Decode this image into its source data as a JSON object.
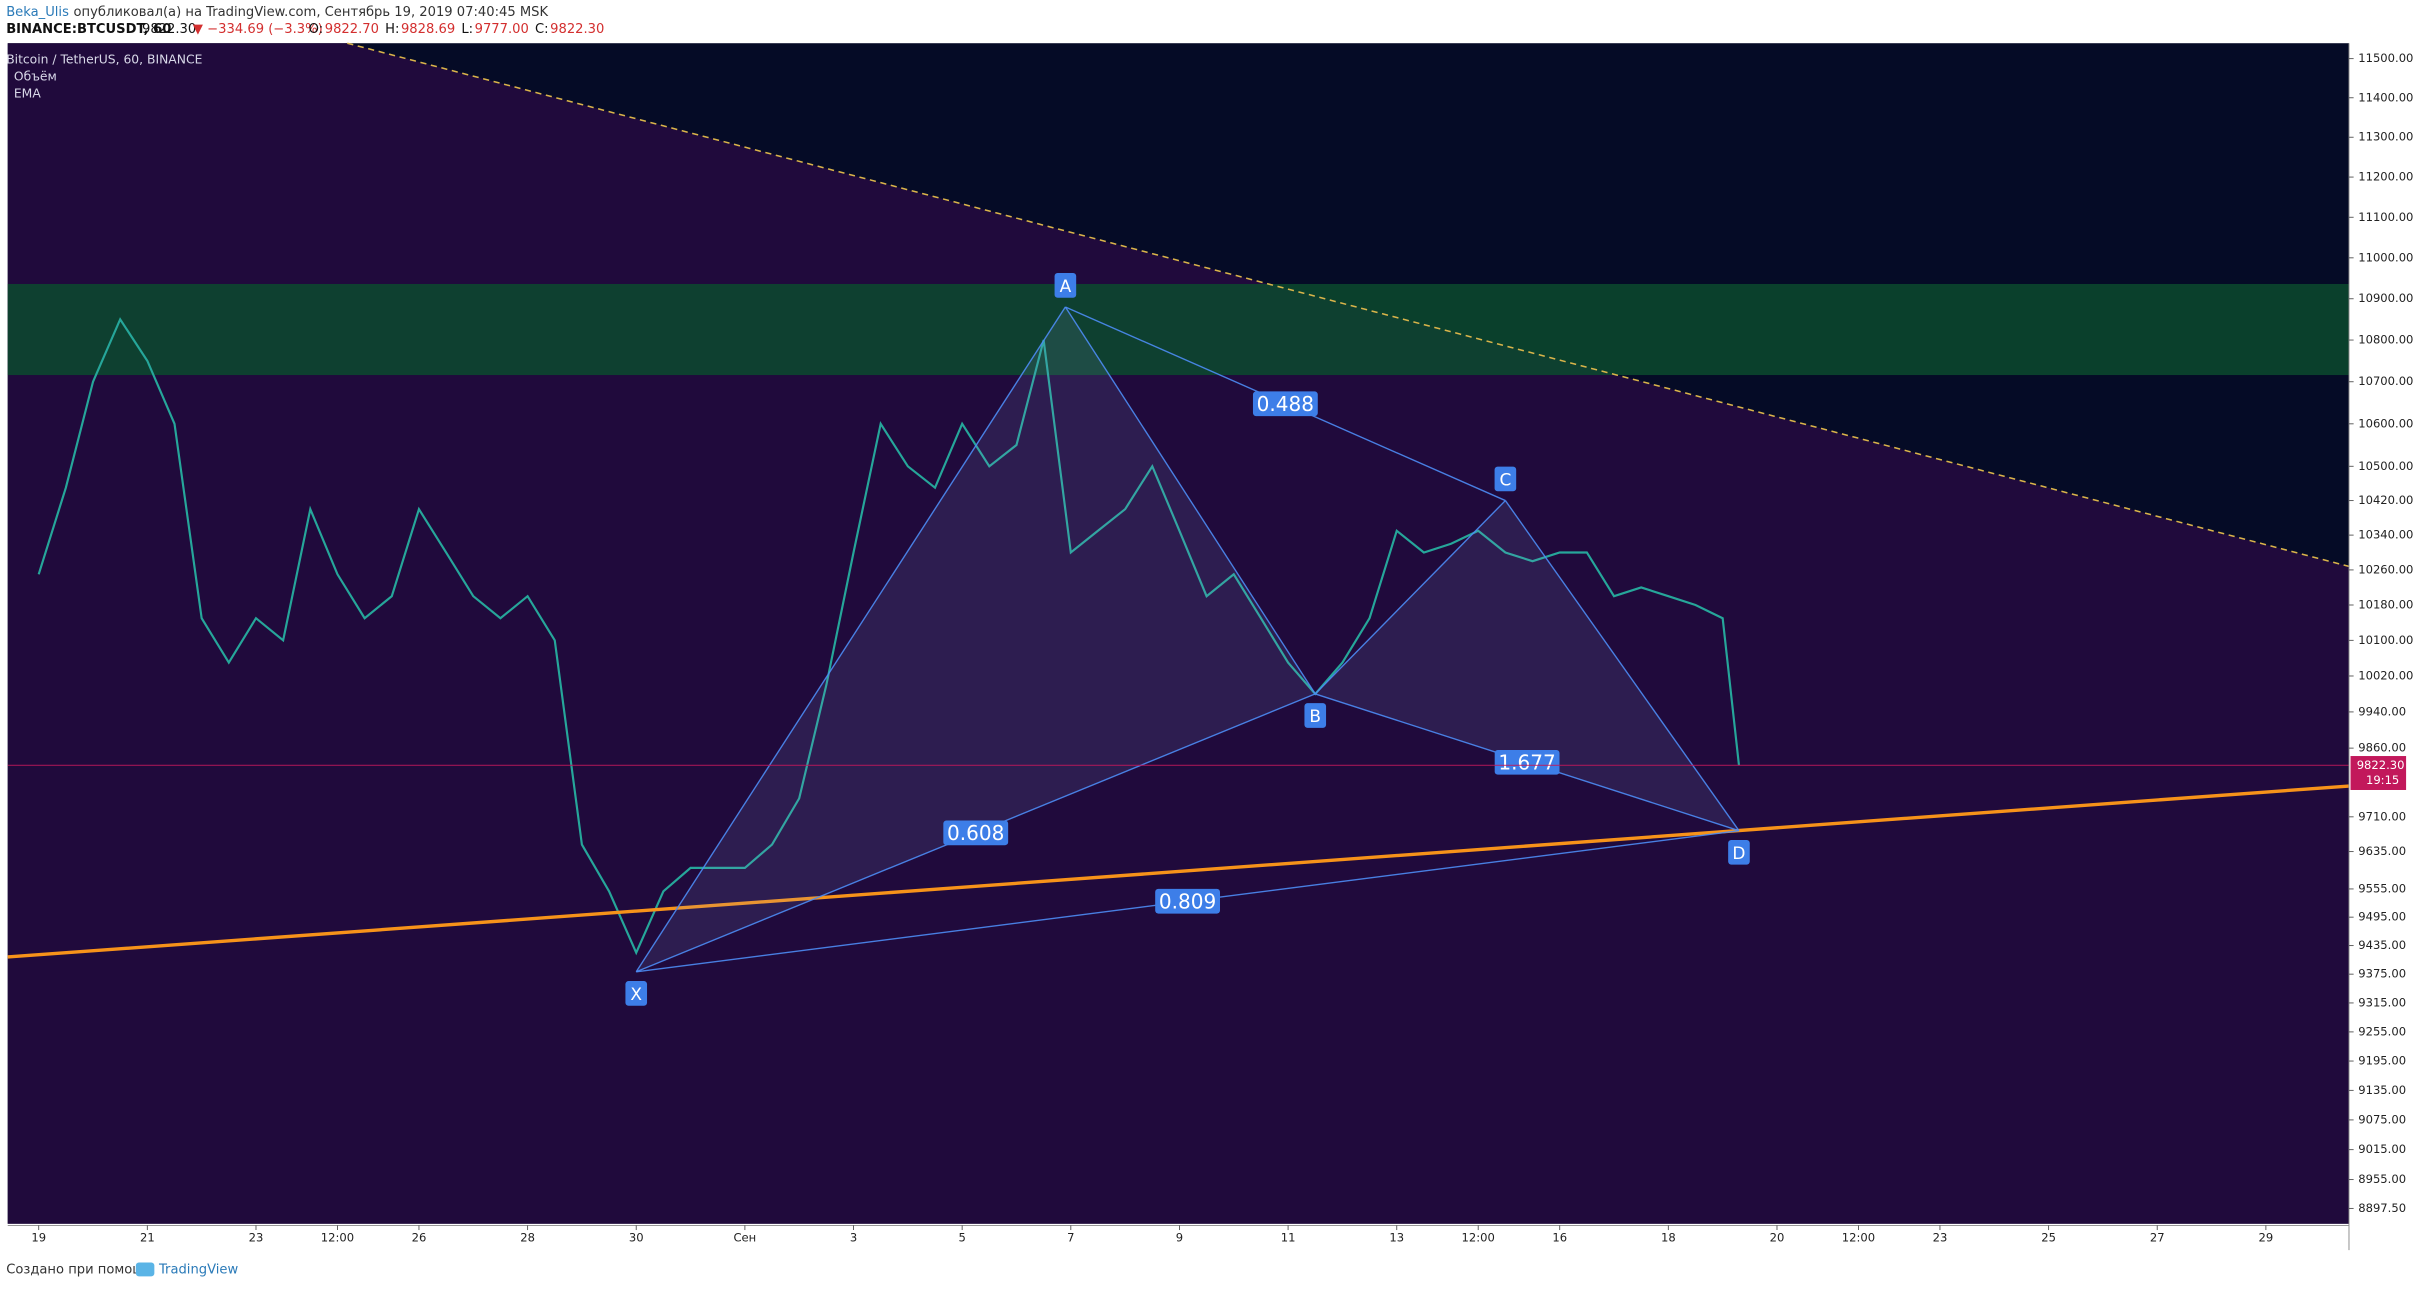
{
  "header": {
    "author": "Beka_Ulis",
    "published": "опубликовал(а) на TradingView.com, Сентябрь 19, 2019 07:40:45 MSK",
    "symbol": "BINANCE:BTCUSDT, 60",
    "last": "9822.30",
    "change": "▼ −334.69 (−3.3%)",
    "ohlc": [
      {
        "name": "O:",
        "value": "9822.70"
      },
      {
        "name": "H:",
        "value": "9828.69"
      },
      {
        "name": "L:",
        "value": "9777.00"
      },
      {
        "name": "C:",
        "value": "9822.30"
      }
    ]
  },
  "indicators": [
    "Объём",
    "EMA"
  ],
  "footer": {
    "text": "Создано при помощи",
    "brand": "TradingView"
  },
  "chart_data": {
    "type": "line",
    "log_scale": true,
    "x": [
      0,
      0.5,
      1,
      1.5,
      2,
      2.5,
      3,
      3.5,
      4,
      4.5,
      5,
      5.5,
      6,
      6.5,
      7,
      7.5,
      8,
      8.5,
      9,
      9.5,
      10,
      10.5,
      11,
      11.5,
      12,
      12.5,
      13,
      13.5,
      14,
      14.5,
      15,
      15.5,
      16,
      16.5,
      17,
      17.5,
      18,
      18.5,
      19,
      19.5,
      20,
      20.5,
      21,
      21.5,
      22,
      22.5,
      23,
      23.5,
      24,
      24.5,
      25,
      25.5,
      26,
      26.5,
      27,
      27.5,
      28,
      28.5,
      29,
      29.5,
      30,
      30.5,
      31,
      31.3
    ],
    "series": [
      {
        "name": "Bitcoin / TetherUS, 60, BINANCE",
        "color": "#26a69a",
        "values": [
          10250,
          10450,
          10700,
          10850,
          10750,
          10600,
          10150,
          10050,
          10150,
          10100,
          10400,
          10250,
          10150,
          10200,
          10400,
          10300,
          10200,
          10150,
          10200,
          10100,
          9650,
          9550,
          9420,
          9550,
          9600,
          9600,
          9600,
          9650,
          9750,
          10000,
          10300,
          10600,
          10500,
          10450,
          10600,
          10500,
          10550,
          10800,
          10300,
          10350,
          10400,
          10500,
          10350,
          10200,
          10250,
          10150,
          10050,
          9980,
          10050,
          10150,
          10350,
          10300,
          10320,
          10350,
          10300,
          10280,
          10300,
          10300,
          10200,
          10220,
          10200,
          10180,
          10150,
          9822.3
        ]
      }
    ],
    "xlim": [
      -0.57,
      42.53
    ],
    "xticks": [
      {
        "value": 0,
        "label": "19"
      },
      {
        "value": 2,
        "label": "21"
      },
      {
        "value": 4,
        "label": "23"
      },
      {
        "value": 5.5,
        "label": "12:00"
      },
      {
        "value": 7,
        "label": "26"
      },
      {
        "value": 9,
        "label": "28"
      },
      {
        "value": 11,
        "label": "30"
      },
      {
        "value": 13,
        "label": "Сен"
      },
      {
        "value": 15,
        "label": "3"
      },
      {
        "value": 17,
        "label": "5"
      },
      {
        "value": 19,
        "label": "7"
      },
      {
        "value": 21,
        "label": "9"
      },
      {
        "value": 23,
        "label": "11"
      },
      {
        "value": 25,
        "label": "13"
      },
      {
        "value": 26.5,
        "label": "12:00"
      },
      {
        "value": 28,
        "label": "16"
      },
      {
        "value": 30,
        "label": "18"
      },
      {
        "value": 32,
        "label": "20"
      },
      {
        "value": 33.5,
        "label": "12:00"
      },
      {
        "value": 35,
        "label": "23"
      },
      {
        "value": 37,
        "label": "25"
      },
      {
        "value": 39,
        "label": "27"
      },
      {
        "value": 41,
        "label": "29"
      }
    ],
    "ylim": [
      8866.9,
      11539.6
    ],
    "yticks": [
      {
        "value": 11500,
        "label": "11500.00"
      },
      {
        "value": 11400,
        "label": "11400.00"
      },
      {
        "value": 11300,
        "label": "11300.00"
      },
      {
        "value": 11200,
        "label": "11200.00"
      },
      {
        "value": 11100,
        "label": "11100.00"
      },
      {
        "value": 11000,
        "label": "11000.00"
      },
      {
        "value": 10900,
        "label": "10900.00"
      },
      {
        "value": 10800,
        "label": "10800.00"
      },
      {
        "value": 10700,
        "label": "10700.00"
      },
      {
        "value": 10600,
        "label": "10600.00"
      },
      {
        "value": 10500,
        "label": "10500.00"
      },
      {
        "value": 10420,
        "label": "10420.00"
      },
      {
        "value": 10340,
        "label": "10340.00"
      },
      {
        "value": 10260,
        "label": "10260.00"
      },
      {
        "value": 10180,
        "label": "10180.00"
      },
      {
        "value": 10100,
        "label": "10100.00"
      },
      {
        "value": 10020,
        "label": "10020.00"
      },
      {
        "value": 9940,
        "label": "9940.00"
      },
      {
        "value": 9860,
        "label": "9860.00"
      },
      {
        "value": 9710,
        "label": "9710.00"
      },
      {
        "value": 9635,
        "label": "9635.00"
      },
      {
        "value": 9555,
        "label": "9555.00"
      },
      {
        "value": 9495,
        "label": "9495.00"
      },
      {
        "value": 9435,
        "label": "9435.00"
      },
      {
        "value": 9375,
        "label": "9375.00"
      },
      {
        "value": 9315,
        "label": "9315.00"
      },
      {
        "value": 9255,
        "label": "9255.00"
      },
      {
        "value": 9195,
        "label": "9195.00"
      },
      {
        "value": 9135,
        "label": "9135.00"
      },
      {
        "value": 9075,
        "label": "9075.00"
      },
      {
        "value": 9015,
        "label": "9015.00"
      },
      {
        "value": 8955,
        "label": "8955.00"
      },
      {
        "value": 8897.5,
        "label": "8897.50"
      }
    ],
    "zone": {
      "from": 10716,
      "to": 10936,
      "color": "#0c4a2e"
    },
    "trendlines": [
      {
        "x": [
          5.68,
          42.53
        ],
        "y": [
          11539.6,
          10268
        ],
        "color": "#d9b44a",
        "dashed": true
      },
      {
        "x": [
          -0.57,
          42.53
        ],
        "y": [
          9411,
          9777
        ],
        "color": "#f7931a",
        "dashed": false
      }
    ],
    "pattern": {
      "labels": [
        "X",
        "A",
        "B",
        "C",
        "D"
      ],
      "x": [
        11,
        18.9,
        23.5,
        27,
        31.3
      ],
      "y": [
        9380,
        10880,
        9980,
        10420,
        9680
      ],
      "color": "#4d8cf5",
      "ratios": [
        0.488,
        0.608,
        1.677,
        0.809
      ]
    },
    "last_price": {
      "value": 9822.3,
      "label": "9822.30",
      "countdown": "19:15",
      "color": "#c2185b"
    }
  }
}
